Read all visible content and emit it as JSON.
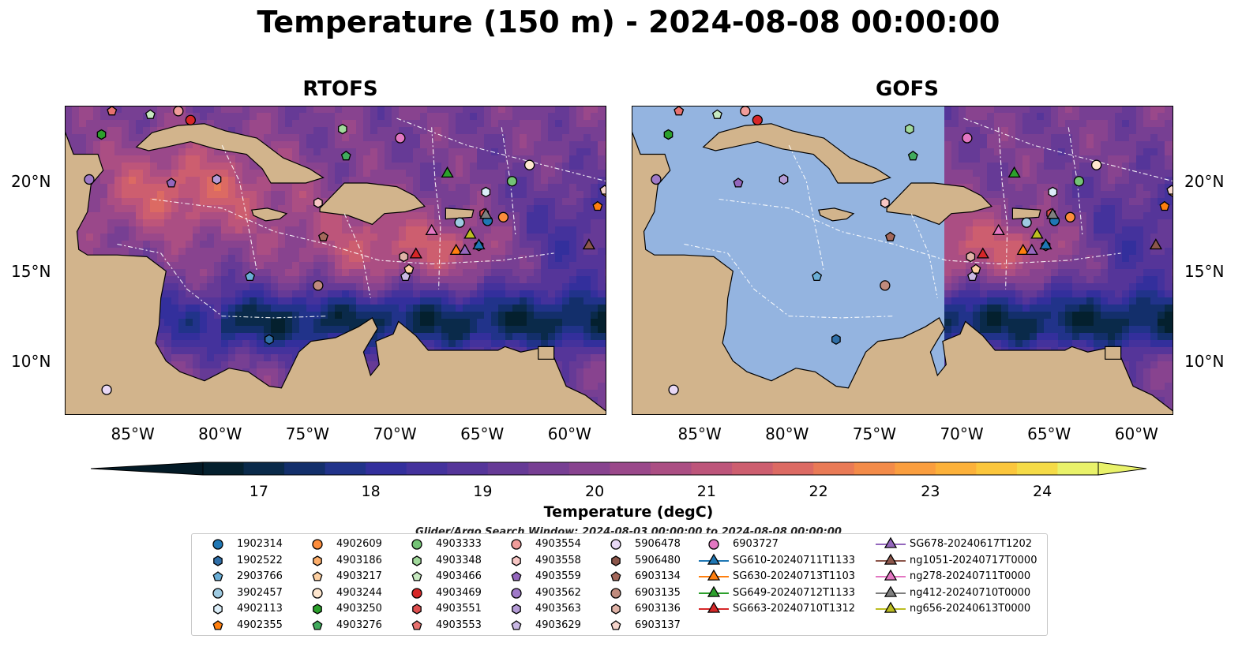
{
  "title": "Temperature (150 m) - 2024-08-08 00:00:00",
  "panels": [
    {
      "title": "RTOFS",
      "has_data_east_only": false
    },
    {
      "title": "GOFS",
      "has_data_east_only": true
    }
  ],
  "lon_ticks": [
    "85°W",
    "80°W",
    "75°W",
    "70°W",
    "65°W",
    "60°W"
  ],
  "lon_tick_values": [
    -85,
    -80,
    -75,
    -70,
    -65,
    -60
  ],
  "lat_ticks": [
    "20°N",
    "15°N",
    "10°N"
  ],
  "lat_tick_values": [
    20,
    15,
    10
  ],
  "map_extent": {
    "lon_min": -89,
    "lon_max": -58,
    "lat_min": 7,
    "lat_max": 24.2
  },
  "colorbar": {
    "label": "Temperature (degC)",
    "ticks": [
      "17",
      "18",
      "19",
      "20",
      "21",
      "22",
      "23",
      "24"
    ],
    "tick_values": [
      17,
      18,
      19,
      20,
      21,
      22,
      23,
      24
    ],
    "range": [
      16.5,
      24.5
    ],
    "step": 0.5,
    "extend": "both",
    "colormap": "thermal",
    "colors": [
      "#04202e",
      "#0a2a4a",
      "#132f6b",
      "#21338a",
      "#332f9c",
      "#44329c",
      "#553599",
      "#663a96",
      "#773f93",
      "#88438f",
      "#9a488a",
      "#ab4e83",
      "#bd557a",
      "#cd5e6f",
      "#dc6a63",
      "#e97a56",
      "#f38b49",
      "#fa9e3f",
      "#fcb13a",
      "#fbc63c",
      "#f5db47",
      "#e9f26a"
    ]
  },
  "search_window": "Glider/Argo Search Window: 2024-08-03 00:00:00 to 2024-08-08 00:00:00",
  "legend": [
    {
      "label": "1902314",
      "marker": "circle",
      "color": "#1f77b4"
    },
    {
      "label": "1902522",
      "marker": "hexagon",
      "color": "#2f6fa8"
    },
    {
      "label": "2903766",
      "marker": "pentagon",
      "color": "#6aaed6"
    },
    {
      "label": "3902457",
      "marker": "circle",
      "color": "#9ecae1"
    },
    {
      "label": "4902113",
      "marker": "hexagon",
      "color": "#dbedf8"
    },
    {
      "label": "4902355",
      "marker": "pentagon",
      "color": "#ff7f0e"
    },
    {
      "label": "4902609",
      "marker": "circle",
      "color": "#fd8d3c"
    },
    {
      "label": "4903186",
      "marker": "hexagon",
      "color": "#fdae6b"
    },
    {
      "label": "4903217",
      "marker": "pentagon",
      "color": "#fdd0a2"
    },
    {
      "label": "4903244",
      "marker": "circle",
      "color": "#fee6ce"
    },
    {
      "label": "4903250",
      "marker": "hexagon",
      "color": "#2ca02c"
    },
    {
      "label": "4903276",
      "marker": "pentagon",
      "color": "#41ab5d"
    },
    {
      "label": "4903333",
      "marker": "circle",
      "color": "#74c476"
    },
    {
      "label": "4903348",
      "marker": "hexagon",
      "color": "#a1d99b"
    },
    {
      "label": "4903466",
      "marker": "pentagon",
      "color": "#c7e9c0"
    },
    {
      "label": "4903469",
      "marker": "circle",
      "color": "#d62728"
    },
    {
      "label": "4903551",
      "marker": "hexagon",
      "color": "#de4f4f"
    },
    {
      "label": "4903553",
      "marker": "pentagon",
      "color": "#e7716f"
    },
    {
      "label": "4903554",
      "marker": "circle",
      "color": "#f09c9a"
    },
    {
      "label": "4903558",
      "marker": "hexagon",
      "color": "#f7c6c4"
    },
    {
      "label": "4903559",
      "marker": "pentagon",
      "color": "#9467bd"
    },
    {
      "label": "4903562",
      "marker": "circle",
      "color": "#9f79c8"
    },
    {
      "label": "4903563",
      "marker": "hexagon",
      "color": "#b49bd6"
    },
    {
      "label": "4903629",
      "marker": "pentagon",
      "color": "#c9b8e4"
    },
    {
      "label": "5906478",
      "marker": "circle",
      "color": "#e8d8f5"
    },
    {
      "label": "5906480",
      "marker": "hexagon",
      "color": "#8c564b"
    },
    {
      "label": "6903134",
      "marker": "pentagon",
      "color": "#a4685b"
    },
    {
      "label": "6903135",
      "marker": "circle",
      "color": "#c08b7d"
    },
    {
      "label": "6903136",
      "marker": "hexagon",
      "color": "#e0b3a7"
    },
    {
      "label": "6903137",
      "marker": "pentagon",
      "color": "#f6d5cc"
    },
    {
      "label": "6903727",
      "marker": "circle",
      "color": "#e377c2"
    },
    {
      "label": "SG610-20240711T1133",
      "marker": "triangle",
      "color": "#1f77b4"
    },
    {
      "label": "SG630-20240713T1103",
      "marker": "triangle",
      "color": "#ff7f0e"
    },
    {
      "label": "SG649-20240712T1133",
      "marker": "triangle",
      "color": "#2ca02c"
    },
    {
      "label": "SG663-20240710T1312",
      "marker": "triangle",
      "color": "#d62728"
    },
    {
      "label": "SG678-20240617T1202",
      "marker": "triangle",
      "color": "#9467bd"
    },
    {
      "label": "ng1051-20240717T0000",
      "marker": "triangle",
      "color": "#8c564b"
    },
    {
      "label": "ng278-20240711T0000",
      "marker": "triangle",
      "color": "#e377c2"
    },
    {
      "label": "ng412-20240710T0000",
      "marker": "triangle",
      "color": "#7f7f7f"
    },
    {
      "label": "ng656-20240613T0000",
      "marker": "triangle",
      "color": "#bcbd22"
    }
  ],
  "observations": [
    {
      "id": "1902314",
      "lon": -64.8,
      "lat": 17.8
    },
    {
      "id": "1902522",
      "lon": -77.3,
      "lat": 11.2
    },
    {
      "id": "2903766",
      "lon": -78.4,
      "lat": 14.7
    },
    {
      "id": "3902457",
      "lon": -66.4,
      "lat": 17.7
    },
    {
      "id": "4902113",
      "lon": -64.9,
      "lat": 19.4
    },
    {
      "id": "4902355",
      "lon": -58.5,
      "lat": 18.6
    },
    {
      "id": "4902609",
      "lon": -63.9,
      "lat": 18.0
    },
    {
      "id": "4903186",
      "lon": -58.0,
      "lat": 19.4
    },
    {
      "id": "4903217",
      "lon": -69.3,
      "lat": 15.1
    },
    {
      "id": "4903244",
      "lon": -62.4,
      "lat": 20.9
    },
    {
      "id": "4903250",
      "lon": -86.9,
      "lat": 22.6
    },
    {
      "id": "4903276",
      "lon": -72.9,
      "lat": 21.4
    },
    {
      "id": "4903333",
      "lon": -63.4,
      "lat": 20.0
    },
    {
      "id": "4903348",
      "lon": -73.1,
      "lat": 22.9
    },
    {
      "id": "4903466",
      "lon": -84.1,
      "lat": 23.7
    },
    {
      "id": "4903469",
      "lon": -81.8,
      "lat": 23.4
    },
    {
      "id": "4903551",
      "lon": -65.0,
      "lat": 18.2
    },
    {
      "id": "4903553",
      "lon": -86.3,
      "lat": 23.9
    },
    {
      "id": "4903554",
      "lon": -82.5,
      "lat": 23.9
    },
    {
      "id": "4903558",
      "lon": -74.5,
      "lat": 18.8
    },
    {
      "id": "4903559",
      "lon": -82.9,
      "lat": 19.9
    },
    {
      "id": "4903562",
      "lon": -87.6,
      "lat": 20.1
    },
    {
      "id": "4903563",
      "lon": -80.3,
      "lat": 20.1
    },
    {
      "id": "4903629",
      "lon": -69.5,
      "lat": 14.7
    },
    {
      "id": "5906478",
      "lon": -86.6,
      "lat": 8.4
    },
    {
      "id": "5906480",
      "lon": -65.3,
      "lat": 16.4
    },
    {
      "id": "6903134",
      "lon": -74.2,
      "lat": 16.9
    },
    {
      "id": "6903135",
      "lon": -74.5,
      "lat": 14.2
    },
    {
      "id": "6903136",
      "lon": -69.6,
      "lat": 15.8
    },
    {
      "id": "6903137",
      "lon": -58.1,
      "lat": 19.5
    },
    {
      "id": "6903727",
      "lon": -69.8,
      "lat": 22.4
    },
    {
      "id": "SG610-20240711T1133",
      "lon": -65.3,
      "lat": 16.5
    },
    {
      "id": "SG630-20240713T1103",
      "lon": -66.6,
      "lat": 16.2
    },
    {
      "id": "SG649-20240712T1133",
      "lon": -67.1,
      "lat": 20.5
    },
    {
      "id": "SG663-20240710T1312",
      "lon": -68.9,
      "lat": 16.0
    },
    {
      "id": "SG678-20240617T1202",
      "lon": -66.1,
      "lat": 16.2
    },
    {
      "id": "ng1051-20240717T0000",
      "lon": -59.0,
      "lat": 16.5
    },
    {
      "id": "ng278-20240711T0000",
      "lon": -68.0,
      "lat": 17.3
    },
    {
      "id": "ng412-20240710T0000",
      "lon": -64.9,
      "lat": 18.2
    },
    {
      "id": "ng656-20240613T0000",
      "lon": -65.8,
      "lat": 17.1
    }
  ],
  "colors": {
    "land": "#d2b48c",
    "masked_ocean": "#94b4e0",
    "coastline": "#000000",
    "eez_lines": "#ffffff"
  }
}
